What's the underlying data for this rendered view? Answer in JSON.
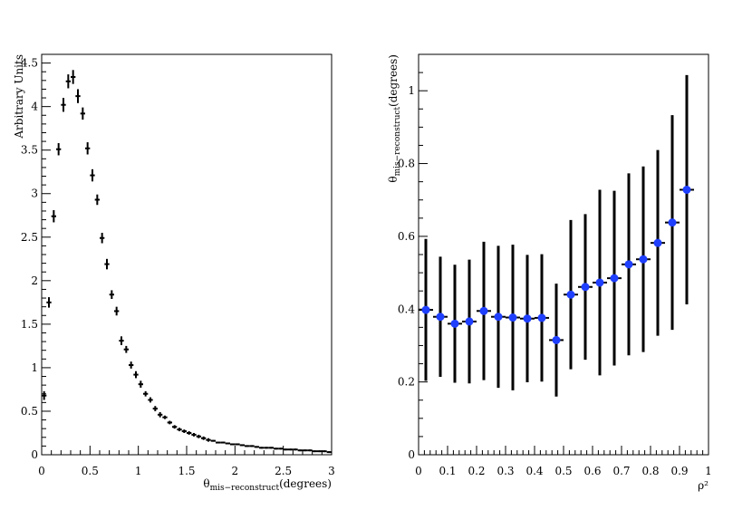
{
  "chart_data": [
    {
      "type": "scatter",
      "title": "",
      "ylabel": "Arbitrary Units",
      "xlabel_main": "θ",
      "xlabel_sub": "mis−reconstruct",
      "xlabel_unit": "(degrees)",
      "xlim": [
        0,
        3
      ],
      "ylim": [
        0,
        4.6
      ],
      "grid": false,
      "x_ticks": [
        "0",
        "0.5",
        "1",
        "1.5",
        "2",
        "2.5",
        "3"
      ],
      "y_ticks": [
        "0",
        "0.5",
        "1",
        "1.5",
        "2",
        "2.5",
        "3",
        "3.5",
        "4",
        "4.5"
      ],
      "marker_color": "#000000",
      "series": [
        {
          "x": [
            0.025,
            0.075,
            0.125,
            0.175,
            0.225,
            0.275,
            0.325,
            0.375,
            0.425,
            0.475,
            0.525,
            0.575,
            0.625,
            0.675,
            0.725,
            0.775,
            0.825,
            0.875,
            0.925,
            0.975,
            1.025,
            1.075,
            1.125,
            1.175,
            1.225,
            1.275,
            1.325,
            1.375,
            1.425,
            1.475,
            1.525,
            1.575,
            1.625,
            1.675,
            1.725,
            1.775,
            1.825,
            1.875,
            1.925,
            1.975,
            2.025,
            2.075,
            2.125,
            2.175,
            2.225,
            2.275,
            2.325,
            2.375,
            2.425,
            2.475,
            2.525,
            2.575,
            2.625,
            2.675,
            2.725,
            2.775,
            2.825,
            2.875,
            2.925,
            2.975
          ],
          "y": [
            0.68,
            1.75,
            2.74,
            3.51,
            4.02,
            4.29,
            4.34,
            4.12,
            3.92,
            3.52,
            3.21,
            2.93,
            2.49,
            2.19,
            1.84,
            1.65,
            1.31,
            1.21,
            1.03,
            0.92,
            0.81,
            0.7,
            0.63,
            0.53,
            0.46,
            0.43,
            0.37,
            0.32,
            0.29,
            0.27,
            0.25,
            0.23,
            0.21,
            0.19,
            0.17,
            0.16,
            0.14,
            0.14,
            0.13,
            0.12,
            0.12,
            0.11,
            0.1,
            0.1,
            0.09,
            0.08,
            0.08,
            0.08,
            0.07,
            0.07,
            0.06,
            0.06,
            0.06,
            0.05,
            0.05,
            0.05,
            0.04,
            0.04,
            0.04,
            0.03
          ],
          "yerr": [
            0.05,
            0.06,
            0.07,
            0.07,
            0.08,
            0.08,
            0.08,
            0.08,
            0.07,
            0.07,
            0.07,
            0.06,
            0.06,
            0.06,
            0.05,
            0.05,
            0.05,
            0.04,
            0.04,
            0.04,
            0.04,
            0.03,
            0.03,
            0.03,
            0.03,
            0.02,
            0.02,
            0.02,
            0.02,
            0.02,
            0.02,
            0.02,
            0.02,
            0.02,
            0.02,
            0.01,
            0.01,
            0.01,
            0.01,
            0.01,
            0.01,
            0.01,
            0.01,
            0.01,
            0.01,
            0.01,
            0.01,
            0.01,
            0.01,
            0.01,
            0.01,
            0.01,
            0.01,
            0.01,
            0.01,
            0.01,
            0.01,
            0.01,
            0.01,
            0.01
          ]
        }
      ]
    },
    {
      "type": "scatter",
      "title": "",
      "ylabel_main": "θ",
      "ylabel_sub": "mis−reconstruct",
      "ylabel_unit": "(degrees)",
      "xlabel": "ρ²",
      "xlim": [
        0,
        1
      ],
      "ylim": [
        0,
        1.1
      ],
      "grid": false,
      "x_ticks": [
        "0",
        "0.1",
        "0.2",
        "0.3",
        "0.4",
        "0.5",
        "0.6",
        "0.7",
        "0.8",
        "0.9",
        "1"
      ],
      "y_ticks": [
        "0",
        "0.2",
        "0.4",
        "0.6",
        "0.8",
        "1"
      ],
      "marker_color": "#1f3fff",
      "series": [
        {
          "x": [
            0.025,
            0.075,
            0.125,
            0.175,
            0.225,
            0.275,
            0.325,
            0.375,
            0.425,
            0.475,
            0.525,
            0.575,
            0.625,
            0.675,
            0.725,
            0.775,
            0.825,
            0.875,
            0.925
          ],
          "y": [
            0.398,
            0.379,
            0.36,
            0.366,
            0.395,
            0.379,
            0.377,
            0.374,
            0.376,
            0.315,
            0.44,
            0.461,
            0.473,
            0.485,
            0.523,
            0.537,
            0.582,
            0.638,
            0.728
          ],
          "yerr": [
            0.195,
            0.165,
            0.162,
            0.17,
            0.19,
            0.195,
            0.2,
            0.175,
            0.175,
            0.155,
            0.205,
            0.2,
            0.255,
            0.24,
            0.25,
            0.255,
            0.255,
            0.295,
            0.315
          ]
        }
      ]
    }
  ]
}
